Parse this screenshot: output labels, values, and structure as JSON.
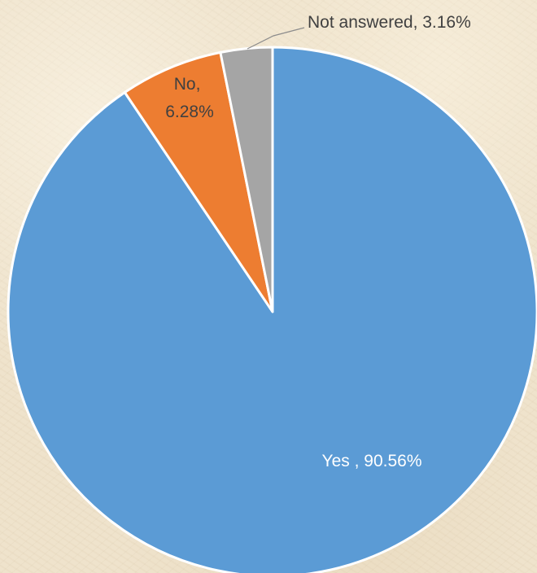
{
  "chart_data": {
    "type": "pie",
    "title": "",
    "start_angle_deg": 0,
    "direction": "clockwise",
    "legend": "none",
    "slices": [
      {
        "name": "Yes",
        "value": 90.56,
        "label": "Yes , 90.56%",
        "color": "#5b9bd5",
        "label_color": "#ffffff"
      },
      {
        "name": "No",
        "value": 6.28,
        "label_lines": [
          "No,",
          "6.28%"
        ],
        "color": "#ed7d31",
        "label_color": "#404040"
      },
      {
        "name": "Not answered",
        "value": 3.16,
        "label": "Not answered, 3.16%",
        "color": "#a5a5a5",
        "label_color": "#404040",
        "leader_line_color": "#8c8c8c"
      }
    ]
  }
}
